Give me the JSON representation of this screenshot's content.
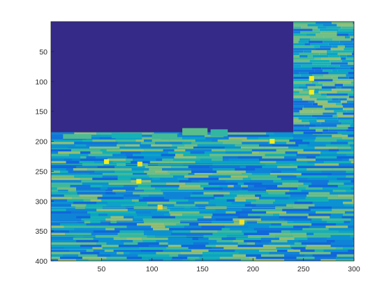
{
  "chart_data": {
    "type": "heatmap",
    "title": "",
    "xlabel": "",
    "ylabel": "",
    "xlim": [
      0,
      300
    ],
    "ylim": [
      400,
      0
    ],
    "y_direction": "reversed",
    "colormap": "parula",
    "xticks": [
      50,
      100,
      150,
      200,
      250,
      300
    ],
    "xtick_labels": [
      "50",
      "100",
      "150",
      "200",
      "250",
      "300"
    ],
    "yticks": [
      50,
      100,
      150,
      200,
      250,
      300,
      350,
      400
    ],
    "ytick_labels": [
      "50",
      "100",
      "150",
      "200",
      "250",
      "300",
      "350",
      "400"
    ],
    "regions": [
      {
        "name": "uniform low region",
        "x": [
          0,
          240
        ],
        "y": [
          0,
          185
        ],
        "value": 0.0
      },
      {
        "name": "lower band",
        "x": [
          0,
          300
        ],
        "y": [
          185,
          400
        ],
        "value_range": [
          0.2,
          0.75
        ]
      },
      {
        "name": "right strip",
        "x": [
          240,
          300
        ],
        "y": [
          0,
          185
        ],
        "value_range": [
          0.2,
          0.75
        ]
      }
    ],
    "highlights": [
      {
        "x": 219,
        "y": 200,
        "value": 0.97
      },
      {
        "x": 55,
        "y": 234,
        "value": 0.97
      },
      {
        "x": 88,
        "y": 238,
        "value": 0.95
      },
      {
        "x": 87,
        "y": 267,
        "value": 0.97
      },
      {
        "x": 108,
        "y": 310,
        "value": 0.92
      },
      {
        "x": 189,
        "y": 335,
        "value": 0.95
      },
      {
        "x": 258,
        "y": 95,
        "value": 0.97
      },
      {
        "x": 258,
        "y": 118,
        "value": 0.97
      }
    ],
    "grid": false,
    "legend": "none"
  }
}
